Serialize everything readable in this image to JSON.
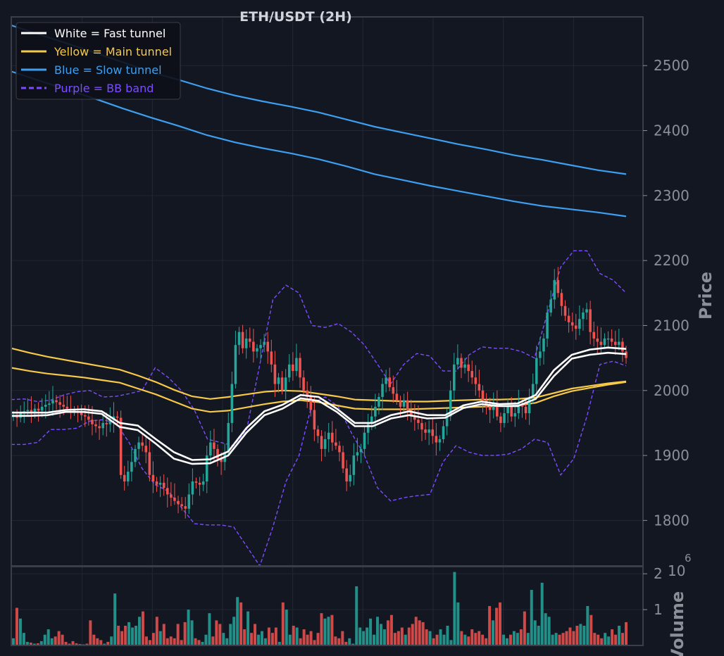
{
  "chart_data": {
    "type": "candlestick",
    "title": "ETH/USDT (2H)",
    "ylabel": "Price",
    "volume_label": "Volume",
    "volume_exponent_base": "10",
    "volume_exponent_power": "6",
    "price_ylim": [
      1730,
      2575
    ],
    "price_ticks": [
      "1800",
      "1900",
      "2000",
      "2100",
      "2200",
      "2300",
      "2400",
      "2500"
    ],
    "volume_ylim": [
      0,
      2.2
    ],
    "volume_ticks": [
      "1",
      "2"
    ],
    "grid": true,
    "legend_position": "top-left",
    "legend": [
      {
        "label": "White = Fast tunnel",
        "color": "#ffffff",
        "style": "solid"
      },
      {
        "label": "Yellow = Main tunnel",
        "color": "#f7c948",
        "style": "solid"
      },
      {
        "label": "Blue = Slow tunnel",
        "color": "#3d9ff0",
        "style": "solid"
      },
      {
        "label": "Purple = BB band",
        "color": "#7c4dff",
        "style": "dashed"
      }
    ],
    "candle_up_color": "#26a69a",
    "candle_down_color": "#ef5350",
    "closes": [
      1962,
      1958,
      1965,
      1968,
      1970,
      1966,
      1972,
      1969,
      1975,
      1978,
      1980,
      1985,
      1982,
      1978,
      1975,
      1972,
      1970,
      1968,
      1966,
      1962,
      1960,
      1955,
      1948,
      1945,
      1942,
      1950,
      1948,
      1955,
      1960,
      1958,
      1870,
      1860,
      1875,
      1890,
      1910,
      1920,
      1915,
      1905,
      1870,
      1860,
      1855,
      1858,
      1850,
      1840,
      1835,
      1830,
      1825,
      1822,
      1818,
      1840,
      1860,
      1858,
      1855,
      1860,
      1900,
      1920,
      1910,
      1895,
      1890,
      1905,
      1950,
      2010,
      2070,
      2090,
      2065,
      2080,
      2075,
      2060,
      2065,
      2070,
      2075,
      2060,
      2040,
      2010,
      2020,
      2000,
      2020,
      2040,
      2030,
      2050,
      2020,
      2000,
      1990,
      1970,
      1940,
      1930,
      1910,
      1925,
      1935,
      1920,
      1915,
      1905,
      1880,
      1860,
      1870,
      1900,
      1905,
      1910,
      1935,
      1950,
      1960,
      1975,
      1990,
      2010,
      2020,
      2005,
      1995,
      1985,
      1975,
      1985,
      1970,
      1960,
      1955,
      1950,
      1940,
      1935,
      1940,
      1930,
      1920,
      1925,
      1945,
      1960,
      2000,
      2040,
      2050,
      2035,
      2040,
      2030,
      2020,
      2010,
      2000,
      1985,
      1975,
      1970,
      1980,
      1960,
      1950,
      1965,
      1975,
      1960,
      1965,
      1980,
      1975,
      1965,
      1990,
      2010,
      2050,
      2060,
      2080,
      2120,
      2140,
      2170,
      2150,
      2130,
      2115,
      2105,
      2100,
      2095,
      2110,
      2120,
      2125,
      2090,
      2080,
      2075,
      2070,
      2080,
      2080,
      2075,
      2070,
      2075,
      2060,
      2050
    ],
    "fast_upper": [
      1966,
      1966,
      1966,
      1970,
      1971,
      1968,
      1950,
      1946,
      1925,
      1905,
      1893,
      1894,
      1906,
      1942,
      1968,
      1978,
      1993,
      1990,
      1972,
      1950,
      1950,
      1962,
      1968,
      1962,
      1962,
      1977,
      1983,
      1979,
      1980,
      1993,
      2031,
      2055,
      2063,
      2066,
      2064
    ],
    "fast_lower": [
      1961,
      1961,
      1962,
      1967,
      1967,
      1964,
      1944,
      1939,
      1918,
      1895,
      1887,
      1888,
      1900,
      1935,
      1962,
      1972,
      1988,
      1984,
      1967,
      1945,
      1945,
      1957,
      1962,
      1957,
      1958,
      1973,
      1979,
      1976,
      1976,
      1987,
      2022,
      2049,
      2055,
      2058,
      2056
    ],
    "main_upper": [
      2065,
      2058,
      2052,
      2047,
      2042,
      2037,
      2032,
      2023,
      2013,
      2001,
      1991,
      1987,
      1990,
      1994,
      1998,
      2000,
      1999,
      1995,
      1991,
      1986,
      1985,
      1984,
      1983,
      1983,
      1984,
      1985,
      1986,
      1986,
      1987,
      1989,
      1996,
      2003,
      2007,
      2011,
      2014
    ],
    "main_lower": [
      2035,
      2030,
      2026,
      2023,
      2020,
      2016,
      2012,
      2003,
      1994,
      1983,
      1972,
      1967,
      1969,
      1974,
      1979,
      1983,
      1985,
      1982,
      1977,
      1972,
      1971,
      1971,
      1971,
      1972,
      1973,
      1974,
      1975,
      1976,
      1977,
      1981,
      1991,
      1999,
      2004,
      2009,
      2013
    ],
    "slow_upper": [
      2562,
      2548,
      2534,
      2520,
      2505,
      2490,
      2478,
      2465,
      2454,
      2445,
      2437,
      2428,
      2417,
      2406,
      2397,
      2388,
      2379,
      2371,
      2362,
      2355,
      2347,
      2339,
      2333
    ],
    "slow_lower": [
      2491,
      2477,
      2463,
      2449,
      2434,
      2420,
      2407,
      2393,
      2382,
      2373,
      2365,
      2356,
      2345,
      2333,
      2324,
      2315,
      2307,
      2299,
      2291,
      2284,
      2279,
      2274,
      2268
    ],
    "bb_upper": [
      1986,
      1987,
      1983,
      1985,
      1993,
      1998,
      2000,
      1990,
      1991,
      1995,
      2000,
      2035,
      2020,
      2000,
      1970,
      1925,
      1920,
      1915,
      1940,
      2040,
      2140,
      2162,
      2150,
      2100,
      2097,
      2103,
      2090,
      2070,
      2040,
      2010,
      2040,
      2057,
      2053,
      2030,
      2030,
      2055,
      2067,
      2065,
      2065,
      2060,
      2050,
      2120,
      2190,
      2215,
      2215,
      2180,
      2170,
      2150
    ],
    "bb_lower": [
      1917,
      1917,
      1920,
      1940,
      1940,
      1942,
      1953,
      1955,
      1950,
      1920,
      1880,
      1855,
      1845,
      1820,
      1795,
      1793,
      1793,
      1790,
      1760,
      1730,
      1790,
      1860,
      1900,
      1980,
      1990,
      1975,
      1935,
      1900,
      1850,
      1830,
      1835,
      1838,
      1840,
      1890,
      1915,
      1905,
      1900,
      1900,
      1902,
      1910,
      1925,
      1920,
      1870,
      1895,
      1960,
      2040,
      2045,
      2038
    ],
    "volume": [
      0.2,
      1.05,
      0.75,
      0.35,
      0.1,
      0.08,
      0.05,
      0.06,
      0.12,
      0.3,
      0.45,
      0.2,
      0.25,
      0.4,
      0.3,
      0.1,
      0.05,
      0.12,
      0.06,
      0.04,
      0.03,
      0.05,
      0.7,
      0.3,
      0.2,
      0.15,
      0.05,
      0.1,
      0.25,
      1.45,
      0.55,
      0.4,
      0.55,
      0.65,
      0.5,
      0.55,
      0.8,
      0.95,
      0.25,
      0.15,
      0.35,
      0.8,
      0.4,
      0.6,
      0.2,
      0.25,
      0.2,
      0.6,
      0.15,
      0.65,
      1.0,
      0.7,
      0.2,
      0.15,
      0.1,
      0.3,
      0.9,
      0.25,
      0.7,
      0.6,
      0.35,
      0.2,
      0.6,
      0.8,
      1.35,
      1.2,
      0.45,
      0.95,
      0.35,
      0.6,
      0.3,
      0.4,
      0.2,
      0.5,
      0.35,
      0.5,
      0.1,
      1.2,
      1.0,
      0.3,
      0.55,
      0.5,
      0.2,
      0.45,
      0.3,
      0.4,
      0.15,
      0.35,
      0.9,
      0.75,
      0.8,
      0.85,
      0.25,
      0.2,
      0.4,
      0.1,
      0.2,
      0.05,
      1.65,
      0.5,
      0.4,
      0.5,
      0.75,
      0.3,
      0.8,
      0.6,
      0.45,
      0.7,
      0.85,
      0.35,
      0.4,
      0.5,
      0.3,
      0.5,
      0.6,
      0.8,
      0.7,
      0.65,
      0.45,
      0.4,
      0.2,
      0.3,
      0.45,
      0.3,
      0.55,
      0.15,
      2.05,
      1.2,
      0.4,
      0.3,
      0.25,
      0.45,
      0.35,
      0.4,
      0.3,
      0.2,
      1.1,
      0.7,
      1.05,
      1.2,
      0.3,
      0.2,
      0.3,
      0.4,
      0.35,
      0.45,
      0.95,
      0.35,
      1.55,
      0.7,
      0.55,
      1.75,
      0.9,
      0.8,
      0.3,
      0.35,
      0.3,
      0.35,
      0.4,
      0.5,
      0.4,
      0.55,
      0.6,
      0.55,
      1.1,
      0.85,
      0.35,
      0.3,
      0.2,
      0.35,
      0.25,
      0.45,
      0.3,
      0.55,
      0.35,
      0.65
    ]
  }
}
